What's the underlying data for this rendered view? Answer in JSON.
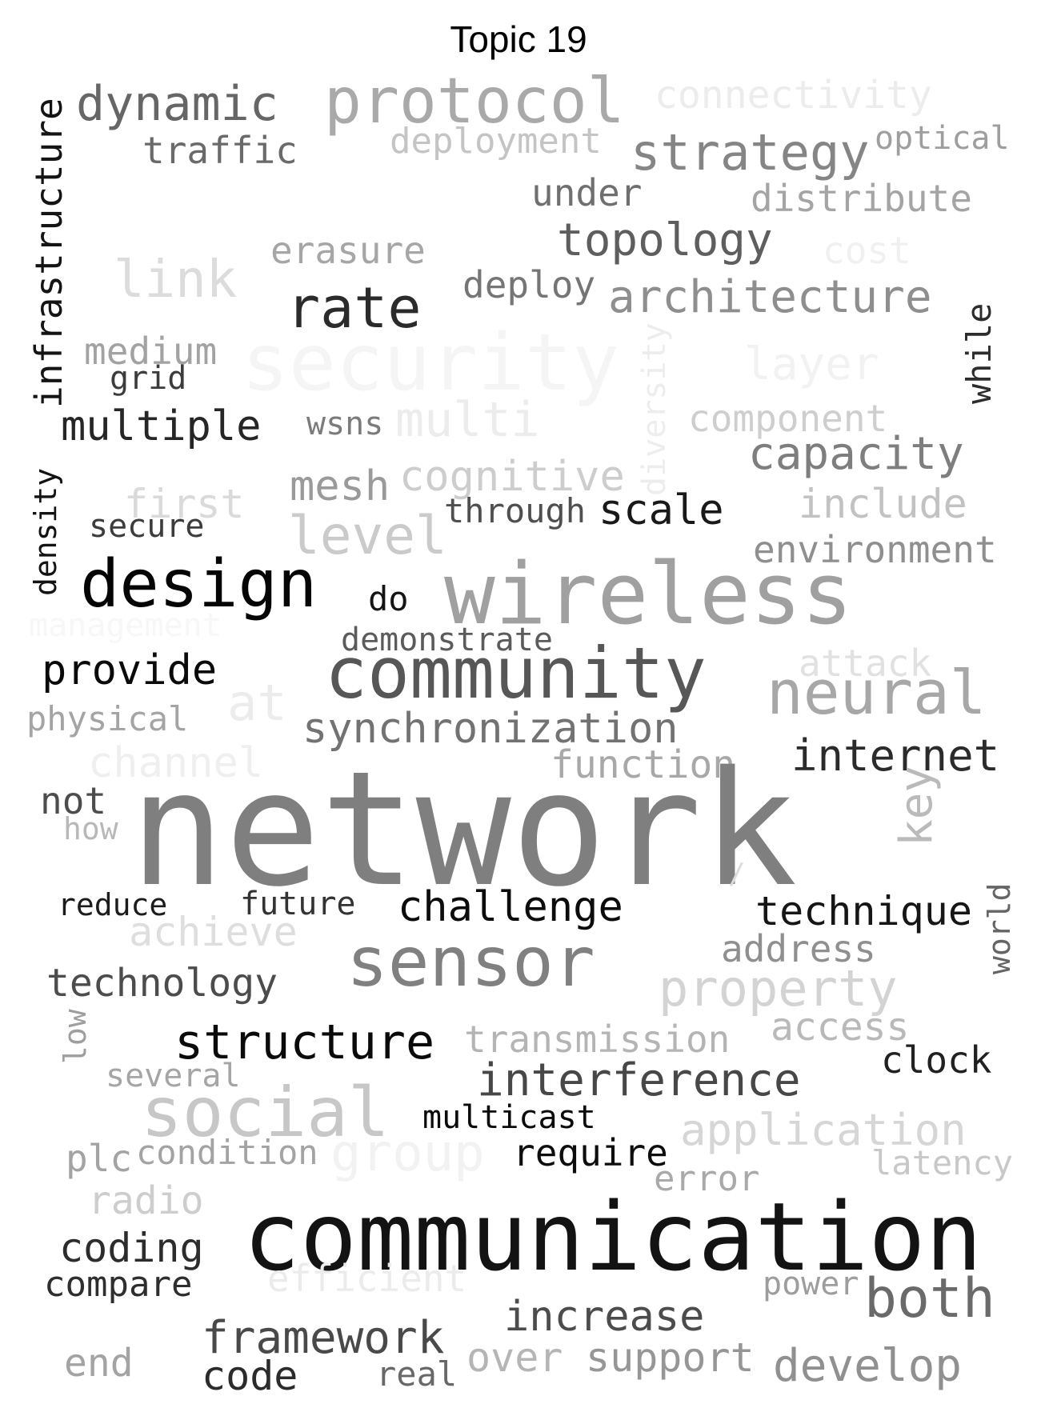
{
  "title": "Topic 19",
  "words": [
    {
      "text": "dynamic",
      "color": "#666666"
    },
    {
      "text": "protocol",
      "color": "#a9a9a9"
    },
    {
      "text": "connectivity",
      "color": "#ececec"
    },
    {
      "text": "traffic",
      "color": "#6a6a6a"
    },
    {
      "text": "deployment",
      "color": "#c4c4c4"
    },
    {
      "text": "strategy",
      "color": "#858585"
    },
    {
      "text": "optical",
      "color": "#9e9e9e"
    },
    {
      "text": "infrastructure",
      "color": "#141414"
    },
    {
      "text": "under",
      "color": "#6f6f6f"
    },
    {
      "text": "distribute",
      "color": "#a4a4a4"
    },
    {
      "text": "topology",
      "color": "#5e5e5e"
    },
    {
      "text": "erasure",
      "color": "#a6a6a6"
    },
    {
      "text": "cost",
      "color": "#f0f0f0"
    },
    {
      "text": "link",
      "color": "#dcdcdc"
    },
    {
      "text": "deploy",
      "color": "#757575"
    },
    {
      "text": "architecture",
      "color": "#8e8e8e"
    },
    {
      "text": "rate",
      "color": "#2b2b2b"
    },
    {
      "text": "while",
      "color": "#2d2d2d"
    },
    {
      "text": "medium",
      "color": "#a2a2a2"
    },
    {
      "text": "security",
      "color": "#f5f5f5"
    },
    {
      "text": "layer",
      "color": "#f2f2f2"
    },
    {
      "text": "grid",
      "color": "#3c3c3c"
    },
    {
      "text": "diversity",
      "color": "#ededed"
    },
    {
      "text": "component",
      "color": "#cecece"
    },
    {
      "text": "multiple",
      "color": "#262626"
    },
    {
      "text": "wsns",
      "color": "#7b7b7b"
    },
    {
      "text": "multi",
      "color": "#ececec"
    },
    {
      "text": "capacity",
      "color": "#7e7e7e"
    },
    {
      "text": "cognitive",
      "color": "#cdcdcd"
    },
    {
      "text": "mesh",
      "color": "#9a9a9a"
    },
    {
      "text": "first",
      "color": "#dadada"
    },
    {
      "text": "include",
      "color": "#c2c2c2"
    },
    {
      "text": "through",
      "color": "#4f4f4f"
    },
    {
      "text": "scale",
      "color": "#191919"
    },
    {
      "text": "density",
      "color": "#131313"
    },
    {
      "text": "secure",
      "color": "#3c3c3c"
    },
    {
      "text": "level",
      "color": "#cacaca"
    },
    {
      "text": "environment",
      "color": "#8f8f8f"
    },
    {
      "text": "design",
      "color": "#050505"
    },
    {
      "text": "do",
      "color": "#141414"
    },
    {
      "text": "wireless",
      "color": "#a0a0a0"
    },
    {
      "text": "management",
      "color": "#f7f7f7"
    },
    {
      "text": "demonstrate",
      "color": "#5b5b5b"
    },
    {
      "text": "provide",
      "color": "#0a0a0a"
    },
    {
      "text": "community",
      "color": "#575757"
    },
    {
      "text": "attack",
      "color": "#e1e1e1"
    },
    {
      "text": "at",
      "color": "#ececec"
    },
    {
      "text": "neural",
      "color": "#a7a7a7"
    },
    {
      "text": "physical",
      "color": "#a4a4a4"
    },
    {
      "text": "synchronization",
      "color": "#727272"
    },
    {
      "text": "channel",
      "color": "#efefef"
    },
    {
      "text": "function",
      "color": "#a8a8a8"
    },
    {
      "text": "internet",
      "color": "#2b2b2b"
    },
    {
      "text": "not",
      "color": "#4d4d4d"
    },
    {
      "text": "network",
      "color": "#7f7f7f"
    },
    {
      "text": "key",
      "color": "#bababa"
    },
    {
      "text": "how",
      "color": "#b8b8b8"
    },
    {
      "text": "/",
      "color": "#dcdcdc"
    },
    {
      "text": "world",
      "color": "#656565"
    },
    {
      "text": "reduce",
      "color": "#1c1c1c"
    },
    {
      "text": "future",
      "color": "#333333"
    },
    {
      "text": "challenge",
      "color": "#0c0c0c"
    },
    {
      "text": "technique",
      "color": "#161616"
    },
    {
      "text": "achieve",
      "color": "#dedede"
    },
    {
      "text": "address",
      "color": "#8f8f8f"
    },
    {
      "text": "sensor",
      "color": "#808080"
    },
    {
      "text": "technology",
      "color": "#4c4c4c"
    },
    {
      "text": "property",
      "color": "#d3d3d3"
    },
    {
      "text": "low",
      "color": "#9e9e9e"
    },
    {
      "text": "structure",
      "color": "#0a0a0a"
    },
    {
      "text": "transmission",
      "color": "#b4b4b4"
    },
    {
      "text": "access",
      "color": "#b9b9b9"
    },
    {
      "text": "clock",
      "color": "#212121"
    },
    {
      "text": "several",
      "color": "#a5a5a5"
    },
    {
      "text": "interference",
      "color": "#474747"
    },
    {
      "text": "social",
      "color": "#c7c7c7"
    },
    {
      "text": "multicast",
      "color": "#0b0b0b"
    },
    {
      "text": "application",
      "color": "#d6d6d6"
    },
    {
      "text": "plc",
      "color": "#a3a3a3"
    },
    {
      "text": "condition",
      "color": "#a3a3a3"
    },
    {
      "text": "group",
      "color": "#f2f2f2"
    },
    {
      "text": "require",
      "color": "#0d0d0d"
    },
    {
      "text": "latency",
      "color": "#c8c8c8"
    },
    {
      "text": "error",
      "color": "#a9a9a9"
    },
    {
      "text": "radio",
      "color": "#cdcdcd"
    },
    {
      "text": "communication",
      "color": "#131313"
    },
    {
      "text": "coding",
      "color": "#2c2c2c"
    },
    {
      "text": "compare",
      "color": "#2e2e2e"
    },
    {
      "text": "efficient",
      "color": "#ebebeb"
    },
    {
      "text": "power",
      "color": "#9d9d9d"
    },
    {
      "text": "both",
      "color": "#6a6a6a"
    },
    {
      "text": "increase",
      "color": "#4c4c4c"
    },
    {
      "text": "framework",
      "color": "#494949"
    },
    {
      "text": "end",
      "color": "#a3a3a3"
    },
    {
      "text": "code",
      "color": "#2b2b2b"
    },
    {
      "text": "real",
      "color": "#686868"
    },
    {
      "text": "over",
      "color": "#b5b5b5"
    },
    {
      "text": "support",
      "color": "#969696"
    },
    {
      "text": "develop",
      "color": "#909090"
    }
  ]
}
